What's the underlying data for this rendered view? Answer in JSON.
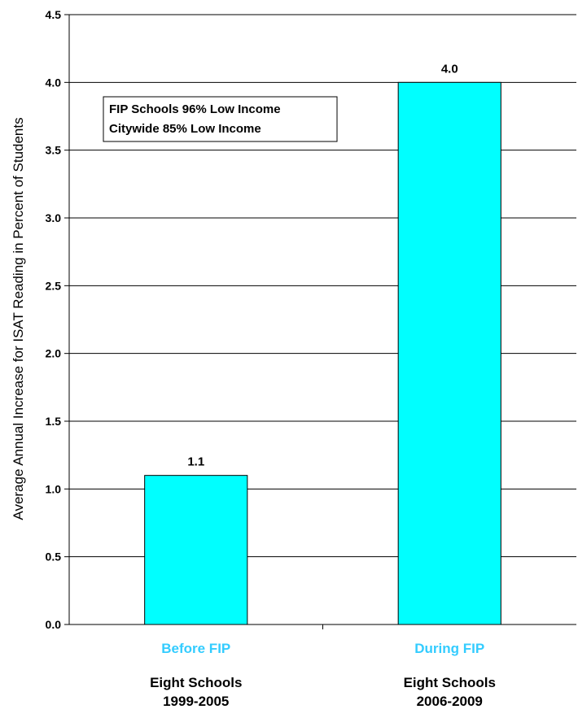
{
  "chart_data": {
    "type": "bar",
    "title": "",
    "xlabel": "",
    "ylabel": "Average Annual Increase for ISAT Reading in Percent of Students",
    "ylim": [
      0,
      4.5
    ],
    "ytick_step": 0.5,
    "yticks": [
      "0.0",
      "0.5",
      "1.0",
      "1.5",
      "2.0",
      "2.5",
      "3.0",
      "3.5",
      "4.0",
      "4.5"
    ],
    "grid": true,
    "categories": [
      "Before FIP",
      "During FIP"
    ],
    "category_sublabels": [
      [
        "Eight Schools",
        "1999-2005"
      ],
      [
        "Eight Schools",
        "2006-2009"
      ]
    ],
    "values": [
      1.1,
      4.0
    ],
    "data_labels": [
      "1.1",
      "4.0"
    ],
    "bar_color": "#00ffff",
    "category_color": "#33ccff",
    "annotation": [
      "FIP Schools 96% Low Income",
      "Citywide 85% Low Income"
    ]
  }
}
